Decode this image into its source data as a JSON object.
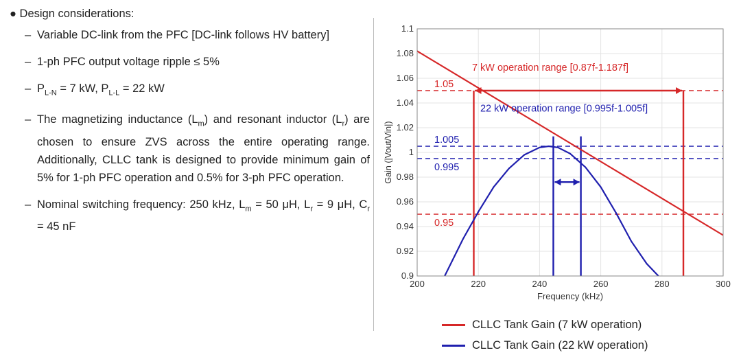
{
  "left": {
    "heading": "● Design considerations:",
    "items": [
      {
        "parts": [
          "Variable DC-link from the PFC [DC-link follows HV battery]"
        ]
      },
      {
        "parts": [
          "1-ph PFC output voltage ripple ≤ 5%"
        ]
      },
      {
        "parts": [
          "P",
          "L-N",
          " = 7 kW, P",
          "L-L",
          " = 22 kW"
        ]
      },
      {
        "parts": [
          "The magnetizing inductance (L",
          "m",
          ") and resonant inductor (L",
          "r",
          ") are chosen to ensure ZVS across the entire operating range. Additionally, CLLC tank is designed to provide minimum gain of 5% for 1-ph PFC operation and 0.5% for 3-ph PFC operation."
        ]
      },
      {
        "parts": [
          "Nominal switching frequency: 250 kHz, L",
          "m",
          " = 50 μH, L",
          "r",
          " = 9 μH, C",
          "r",
          " = 45 nF"
        ]
      }
    ],
    "dash": "–"
  },
  "chart_data": {
    "type": "line",
    "xlabel": "Frequency (kHz)",
    "ylabel": "Gain (|Vout/Vin|)",
    "xlim": [
      200,
      300
    ],
    "ylim": [
      0.9,
      1.1
    ],
    "xticks": [
      200,
      220,
      240,
      260,
      280,
      300
    ],
    "yticks": [
      0.9,
      0.92,
      0.94,
      0.96,
      0.98,
      1,
      1.02,
      1.04,
      1.06,
      1.08,
      1.1
    ],
    "grid": true,
    "series": [
      {
        "name": "CLLC Tank Gain (7 kW operation)",
        "color": "#d62728",
        "x": [
          200,
          300
        ],
        "y": [
          1.082,
          0.933
        ]
      },
      {
        "name": "CLLC Tank Gain (22 kW operation)",
        "color": "#1f1fae",
        "x": [
          209,
          215,
          220,
          225,
          230,
          235,
          240,
          243,
          246,
          250,
          255,
          260,
          265,
          270,
          275,
          280
        ],
        "y": [
          0.9,
          0.93,
          0.952,
          0.972,
          0.987,
          0.998,
          1.004,
          1.005,
          1.004,
          0.999,
          0.988,
          0.972,
          0.951,
          0.928,
          0.91,
          0.897
        ]
      }
    ],
    "hlines": [
      {
        "y": 1.05,
        "label": "1.05",
        "color": "#d62728"
      },
      {
        "y": 0.95,
        "label": "0.95",
        "color": "#d62728"
      },
      {
        "y": 1.005,
        "label": "1.005",
        "color": "#1f1fae"
      },
      {
        "y": 0.995,
        "label": "0.995",
        "color": "#1f1fae"
      }
    ],
    "vlines": [
      {
        "x": 218.5,
        "color": "#d62728"
      },
      {
        "x": 287,
        "color": "#d62728"
      },
      {
        "x": 244.5,
        "color": "#1f1fae"
      },
      {
        "x": 253.5,
        "color": "#1f1fae"
      }
    ],
    "annotations": [
      {
        "text": "7 kW operation range [0.87f-1.187f]",
        "x": 243.5,
        "y": 1.066,
        "color": "#d62728"
      },
      {
        "text": "22 kW operation range [0.995f-1.005f]",
        "x": 248,
        "y": 1.033,
        "color": "#1f1fae"
      }
    ],
    "arrows": [
      {
        "x1": 218.5,
        "x2": 287,
        "y": 1.05,
        "color": "#d62728"
      },
      {
        "x1": 244.5,
        "x2": 253.5,
        "y": 0.976,
        "color": "#1f1fae"
      }
    ]
  }
}
